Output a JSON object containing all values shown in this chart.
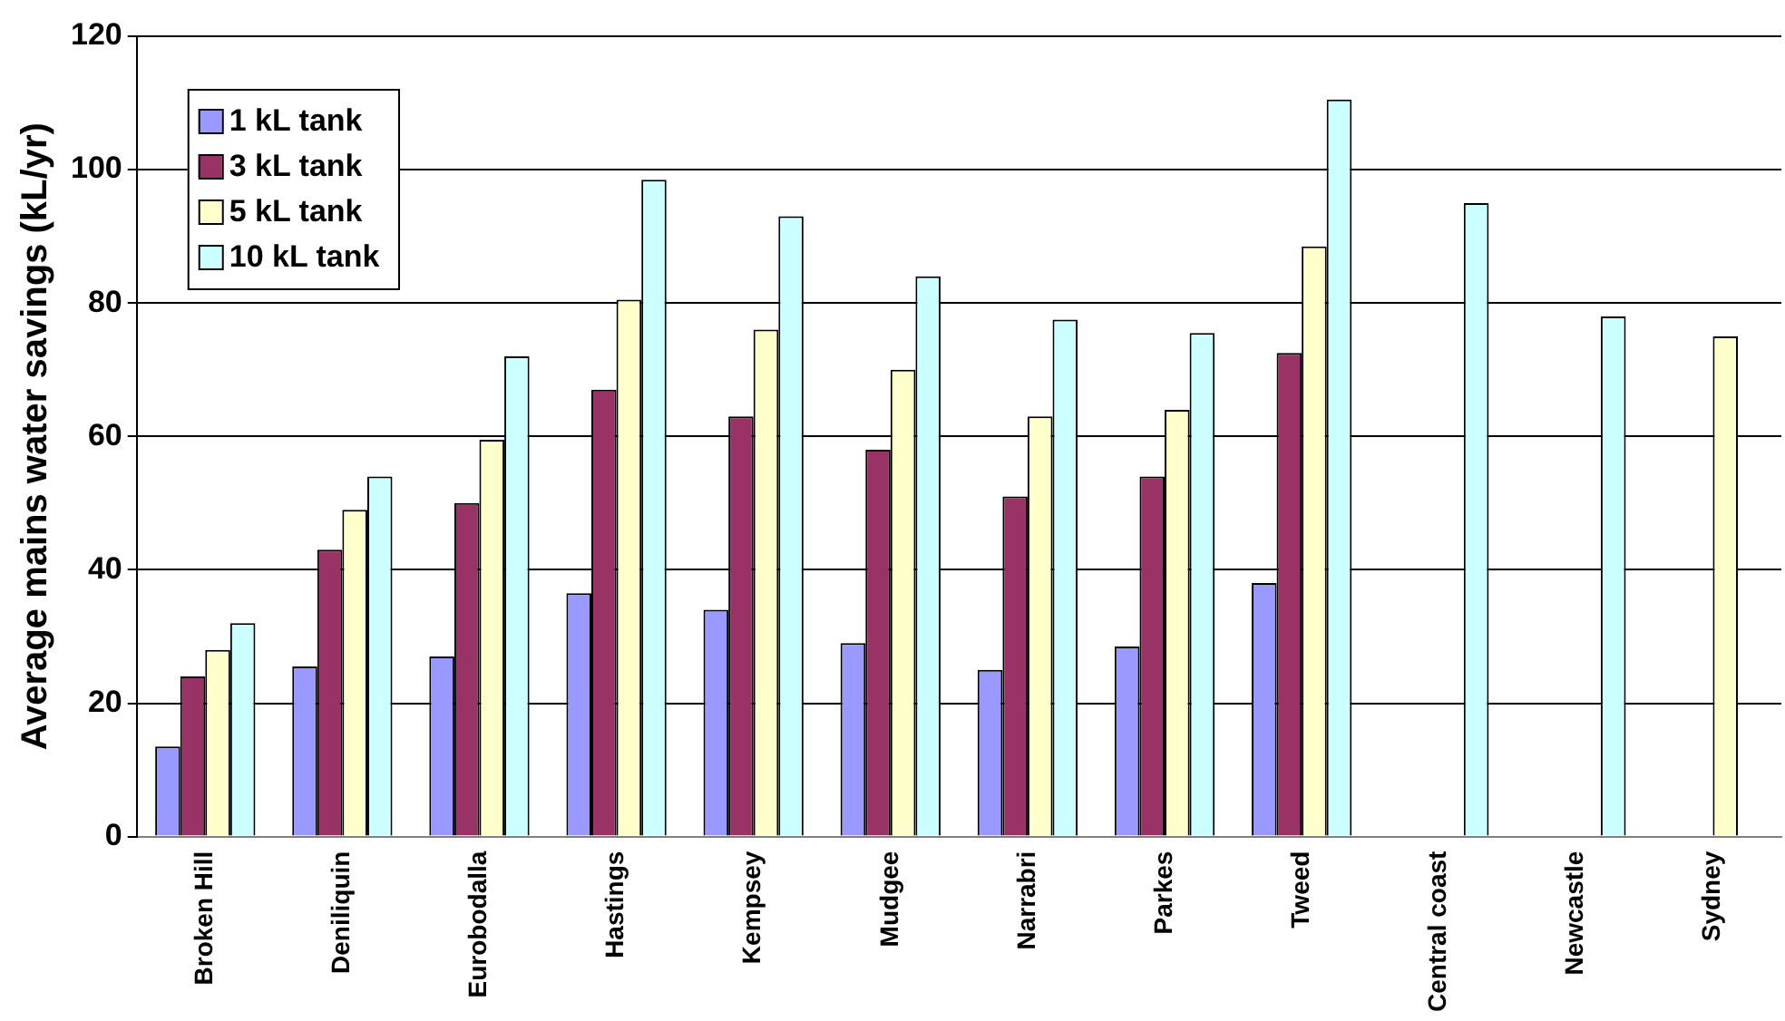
{
  "chart_data": {
    "type": "bar",
    "ylabel": "Average mains water savings (kL/yr)",
    "categories": [
      "Broken Hill",
      "Deniliquin",
      "Eurobodalla",
      "Hastings",
      "Kempsey",
      "Mudgee",
      "Narrabri",
      "Parkes",
      "Tweed",
      "Central coast",
      "Newcastle",
      "Sydney"
    ],
    "series": [
      {
        "name": "1 kL tank",
        "color": "#9999ff",
        "values": [
          13.5,
          25.5,
          27,
          36.5,
          34,
          29,
          25,
          28.5,
          38,
          null,
          null,
          null
        ]
      },
      {
        "name": "3 kL tank",
        "color": "#993366",
        "values": [
          24,
          43,
          50,
          67,
          63,
          58,
          51,
          54,
          72.5,
          null,
          null,
          null
        ]
      },
      {
        "name": "5 kL tank",
        "color": "#ffffcc",
        "values": [
          28,
          49,
          59.5,
          80.5,
          76,
          70,
          63,
          64,
          88.5,
          null,
          null,
          75
        ]
      },
      {
        "name": "10 kL tank",
        "color": "#ccffff",
        "values": [
          32,
          54,
          72,
          98.5,
          93,
          84,
          77.5,
          75.5,
          110.5,
          95,
          78,
          null
        ]
      }
    ],
    "ylim": [
      0,
      120
    ],
    "yticks": [
      0,
      20,
      40,
      60,
      80,
      100,
      120
    ],
    "grid": "y",
    "legend": "top left"
  }
}
